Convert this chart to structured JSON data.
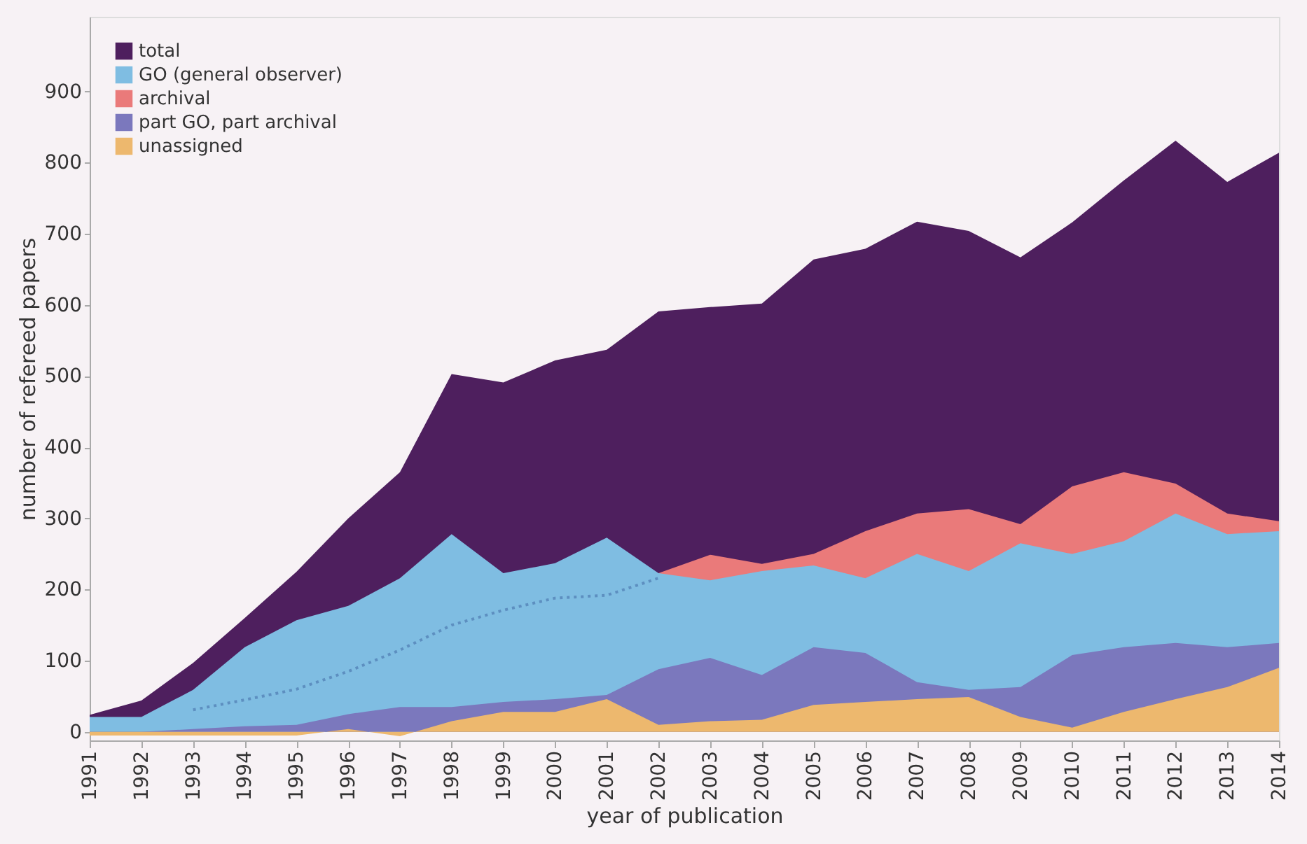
{
  "chart_data": {
    "type": "area",
    "xlabel": "year of publication",
    "ylabel": "number of refereed papers",
    "x": [
      1991,
      1992,
      1993,
      1994,
      1995,
      1996,
      1997,
      1998,
      1999,
      2000,
      2001,
      2002,
      2003,
      2004,
      2005,
      2006,
      2007,
      2008,
      2009,
      2010,
      2011,
      2012,
      2013,
      2014
    ],
    "xlim": [
      1991,
      2014
    ],
    "xticks": [
      1991,
      1992,
      1993,
      1994,
      1995,
      1996,
      1997,
      1998,
      1999,
      2000,
      2001,
      2002,
      2003,
      2004,
      2005,
      2006,
      2007,
      2008,
      2009,
      2010,
      2011,
      2012,
      2013,
      2014
    ],
    "ylim": [
      -12,
      1005
    ],
    "yticks": [
      0,
      100,
      200,
      300,
      400,
      500,
      600,
      700,
      800,
      900
    ],
    "grid": false,
    "legend": "top left",
    "series": [
      {
        "name": "total",
        "color": "#4e1f5e",
        "values": [
          24,
          44,
          97,
          160,
          225,
          300,
          365,
          503,
          491,
          522,
          537,
          591,
          597,
          602,
          664,
          679,
          717,
          704,
          667,
          716,
          775,
          831,
          773,
          814
        ]
      },
      {
        "name": "GO (general observer)",
        "color": "#7fbde2",
        "values": [
          21,
          21,
          59,
          119,
          157,
          177,
          216,
          278,
          223,
          237,
          273,
          223,
          213,
          226,
          234,
          216,
          250,
          226,
          265,
          250,
          268,
          307,
          278,
          282
        ]
      },
      {
        "name": "archival",
        "color": "#ea7a7a",
        "values": [
          null,
          null,
          null,
          null,
          null,
          null,
          null,
          null,
          null,
          null,
          null,
          223,
          249,
          236,
          250,
          282,
          307,
          313,
          292,
          345,
          365,
          349,
          307,
          296
        ]
      },
      {
        "name": "part GO, part archival",
        "color": "#7b78bd",
        "values": [
          0,
          0,
          4,
          8,
          10,
          25,
          35,
          35,
          42,
          46,
          52,
          88,
          104,
          80,
          119,
          111,
          70,
          59,
          63,
          108,
          119,
          125,
          119,
          125
        ]
      },
      {
        "name": "unassigned",
        "color": "#edb86e",
        "values": [
          -5,
          -5,
          -5,
          -5,
          -5,
          4,
          -6,
          15,
          28,
          28,
          46,
          10,
          15,
          17,
          38,
          42,
          46,
          49,
          21,
          6,
          28,
          46,
          63,
          90
        ]
      },
      {
        "type": "line",
        "line_style": "dotted",
        "color": "#5d8fc0",
        "x": [
          1993,
          1994,
          1995,
          1996,
          1997,
          1998,
          1999,
          2000,
          2001,
          2002
        ],
        "values": [
          31,
          45,
          60,
          85,
          115,
          150,
          171,
          188,
          192,
          216
        ]
      }
    ]
  }
}
